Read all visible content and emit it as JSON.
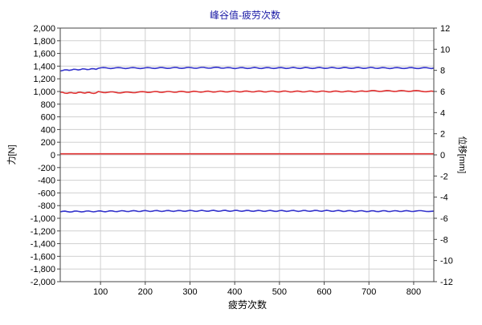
{
  "chart_data": {
    "type": "line",
    "title": "峰谷值-疲劳次数",
    "xlabel": "疲劳次数",
    "ylabel_left": "力[N]",
    "ylabel_right": "位移[mm]",
    "xlim": [
      10,
      845
    ],
    "ylim_left": [
      -2000,
      2000
    ],
    "ylim_right": [
      -12,
      12
    ],
    "x_ticks": [
      "100",
      "200",
      "300",
      "400",
      "500",
      "600",
      "700",
      "800"
    ],
    "y_left_ticks": [
      "2,000",
      "1,800",
      "1,600",
      "1,400",
      "1,200",
      "1,000",
      "800",
      "600",
      "400",
      "200",
      "0",
      "-200",
      "-400",
      "-600",
      "-800",
      "-1,000",
      "-1,200",
      "-1,400",
      "-1,600",
      "-1,800",
      "-2,000"
    ],
    "y_right_ticks": [
      "12",
      "10",
      "8",
      "6",
      "4",
      "2",
      "0",
      "-2",
      "-4",
      "-6",
      "-8",
      "-10",
      "-12"
    ],
    "grid": true,
    "series": [
      {
        "axis": "left",
        "color": "#3333cc",
        "points": [
          [
            10,
            1330
          ],
          [
            30,
            1340
          ],
          [
            60,
            1350
          ],
          [
            90,
            1355
          ],
          [
            95,
            1370
          ],
          [
            200,
            1370
          ],
          [
            380,
            1375
          ],
          [
            385,
            1370
          ],
          [
            725,
            1372
          ],
          [
            730,
            1370
          ],
          [
            845,
            1370
          ]
        ]
      },
      {
        "axis": "right",
        "color": "#e03030",
        "points": [
          [
            10,
            5.9
          ],
          [
            30,
            5.85
          ],
          [
            60,
            5.9
          ],
          [
            90,
            5.85
          ],
          [
            95,
            5.95
          ],
          [
            150,
            5.9
          ],
          [
            200,
            5.95
          ],
          [
            400,
            6.0
          ],
          [
            680,
            6.0
          ],
          [
            690,
            6.05
          ],
          [
            800,
            6.05
          ],
          [
            845,
            6.0
          ]
        ]
      },
      {
        "axis": "right",
        "color": "#e03030",
        "points": [
          [
            10,
            0.1
          ],
          [
            845,
            0.1
          ]
        ]
      },
      {
        "axis": "left",
        "color": "#3333cc",
        "points": [
          [
            10,
            -895
          ],
          [
            100,
            -890
          ],
          [
            200,
            -885
          ],
          [
            300,
            -883
          ],
          [
            400,
            -882
          ],
          [
            500,
            -884
          ],
          [
            600,
            -882
          ],
          [
            700,
            -888
          ],
          [
            800,
            -886
          ],
          [
            845,
            -887
          ]
        ]
      }
    ]
  }
}
